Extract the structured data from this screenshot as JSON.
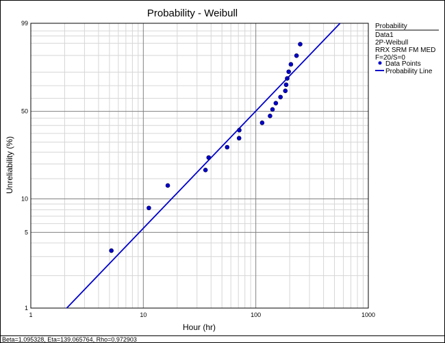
{
  "chart_data": {
    "type": "scatter",
    "title": "Probability - Weibull",
    "xlabel": "Hour (hr)",
    "ylabel": "Unreliability (%)",
    "x_scale": "log",
    "y_scale": "weibull",
    "xlim": [
      1,
      1000
    ],
    "ylim": [
      1,
      99
    ],
    "x_ticks": [
      1,
      10,
      100,
      1000
    ],
    "x_tick_labels": [
      "1",
      "10",
      "100",
      "1000"
    ],
    "y_ticks": [
      1,
      5,
      10,
      50,
      99
    ],
    "y_tick_labels": [
      "1",
      "5",
      "10",
      "50",
      "99"
    ],
    "grid": true,
    "legend_position": "right",
    "legend": {
      "title": "Probability",
      "lines": [
        "Data1",
        "2P-Weibull",
        "RRX SRM FM MED",
        "F=20/S=0"
      ],
      "entries": [
        {
          "label": "Data Points",
          "marker": "dot"
        },
        {
          "label": "Probability Line",
          "marker": "line"
        }
      ]
    },
    "series": [
      {
        "name": "Data Points",
        "color": "#0000cc",
        "points": [
          {
            "x": 5.2,
            "y": 3.4
          },
          {
            "x": 11.2,
            "y": 8.3
          },
          {
            "x": 16.5,
            "y": 13.1
          },
          {
            "x": 35.7,
            "y": 17.8
          },
          {
            "x": 38.1,
            "y": 22.6
          },
          {
            "x": 55.6,
            "y": 27.4
          },
          {
            "x": 71.0,
            "y": 32.2
          },
          {
            "x": 71.3,
            "y": 37.0
          },
          {
            "x": 113.8,
            "y": 41.8
          },
          {
            "x": 133.8,
            "y": 46.6
          },
          {
            "x": 140.7,
            "y": 51.4
          },
          {
            "x": 150.6,
            "y": 56.2
          },
          {
            "x": 165.7,
            "y": 61.0
          },
          {
            "x": 183.0,
            "y": 65.9
          },
          {
            "x": 186.0,
            "y": 70.7
          },
          {
            "x": 190.0,
            "y": 75.5
          },
          {
            "x": 196.0,
            "y": 80.3
          },
          {
            "x": 205.0,
            "y": 85.1
          },
          {
            "x": 230.0,
            "y": 89.9
          },
          {
            "x": 248.0,
            "y": 94.7
          }
        ]
      },
      {
        "name": "Probability Line",
        "color": "#0000cc",
        "weibull": {
          "beta": 1.095328,
          "eta": 139.065764
        }
      }
    ]
  },
  "footer": {
    "text": "Beta=1.095328, Eta=139.065764, Rho=0.972903"
  }
}
